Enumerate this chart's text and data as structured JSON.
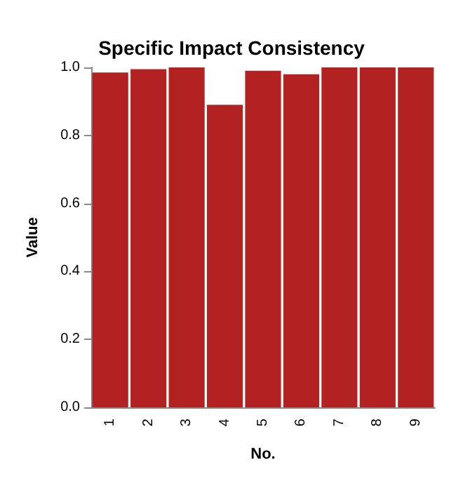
{
  "chart_data": {
    "type": "bar",
    "title": "Specific Impact Consistency",
    "xlabel": "No.",
    "ylabel": "Value",
    "categories": [
      "1",
      "2",
      "3",
      "4",
      "5",
      "6",
      "7",
      "8",
      "9"
    ],
    "values": [
      0.985,
      0.995,
      1.0,
      0.89,
      0.99,
      0.98,
      1.0,
      1.0,
      1.0
    ],
    "color": "#b22222",
    "ylim": [
      0,
      1
    ],
    "yticks": [
      {
        "value": 0,
        "label": "0.0"
      },
      0.2,
      0.4,
      0.6,
      0.8,
      {
        "value": 1,
        "label": "1.0"
      }
    ],
    "grid": false
  }
}
